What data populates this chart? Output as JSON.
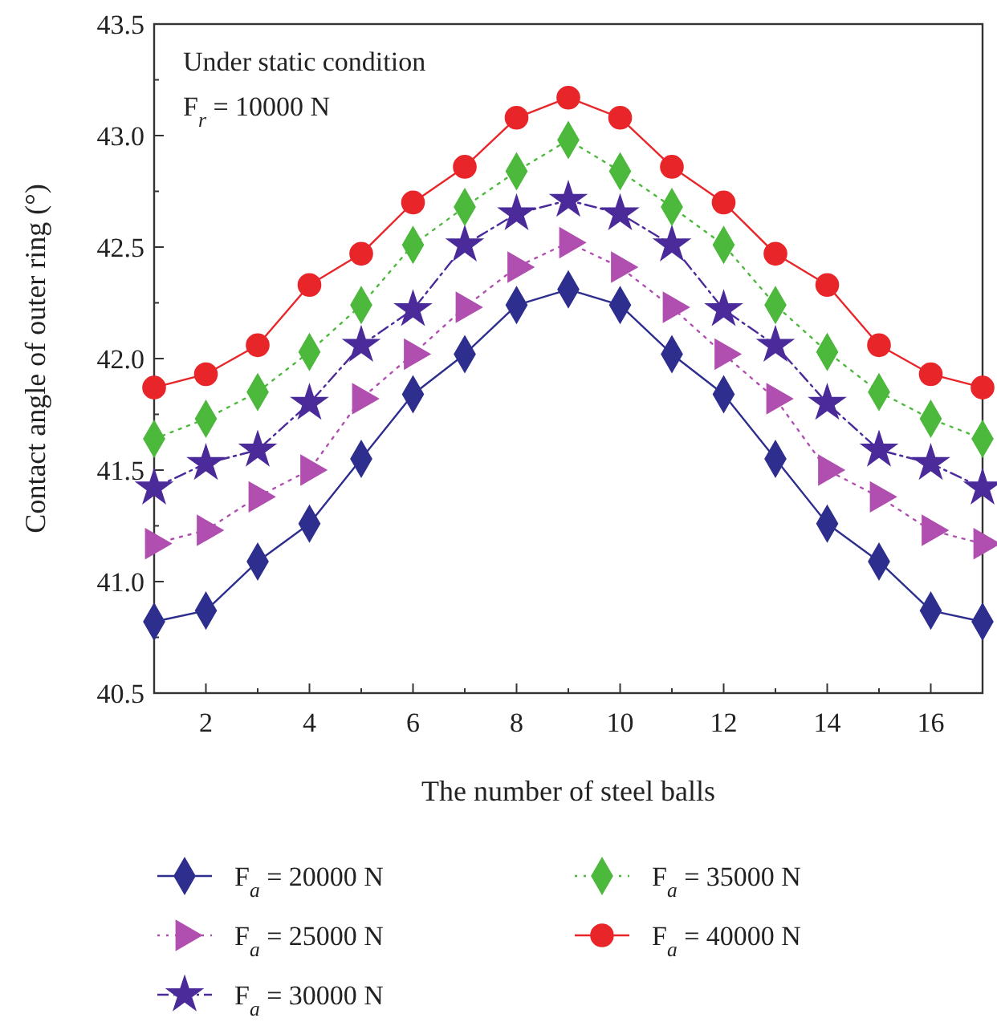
{
  "chart_data": {
    "type": "line",
    "xlabel": "The number of steel balls",
    "ylabel": "Contact angle of outer ring (°)",
    "annotations": [
      "Under static condition",
      "$_{}$F$_{r}$ = 10000 N"
    ],
    "x": [
      1,
      2,
      3,
      4,
      5,
      6,
      7,
      8,
      9,
      10,
      11,
      12,
      13,
      14,
      15,
      16,
      17
    ],
    "xlim": [
      1,
      17
    ],
    "xticks": [
      {
        "value": 1,
        "label": null
      },
      2,
      {
        "value": 3,
        "label": null
      },
      4,
      {
        "value": 5,
        "label": null
      },
      6,
      {
        "value": 7,
        "label": null
      },
      8,
      {
        "value": 9,
        "label": null
      },
      10,
      {
        "value": 11,
        "label": null
      },
      12,
      {
        "value": 13,
        "label": null
      },
      14,
      {
        "value": 15,
        "label": null
      },
      16,
      {
        "value": 17,
        "label": null
      }
    ],
    "ylim": [
      40.5,
      43.5
    ],
    "yticks": [
      {
        "value": 40.5,
        "label": "40.5"
      },
      {
        "value": 40.75,
        "label": null
      },
      {
        "value": 41,
        "label": "41.0"
      },
      {
        "value": 41.25,
        "label": null
      },
      {
        "value": 41.5,
        "label": "41.5"
      },
      {
        "value": 41.75,
        "label": null
      },
      {
        "value": 42,
        "label": "42.0"
      },
      {
        "value": 42.25,
        "label": null
      },
      {
        "value": 42.5,
        "label": "42.5"
      },
      {
        "value": 42.75,
        "label": null
      },
      {
        "value": 43,
        "label": "43.0"
      },
      {
        "value": 43.25,
        "label": null
      },
      {
        "value": 43.5,
        "label": "43.5"
      }
    ],
    "legend": "bottom",
    "series": [
      {
        "name": "F$_{a}$ = 20000 N",
        "color": "#2e2e8f",
        "marker": "diamond",
        "line_style": "solid",
        "values": [
          40.82,
          40.87,
          41.09,
          41.26,
          41.55,
          41.84,
          42.02,
          42.24,
          42.31,
          42.24,
          42.02,
          41.84,
          41.55,
          41.26,
          41.09,
          40.87,
          40.82
        ]
      },
      {
        "name": "F$_{a}$ = 25000 N",
        "color": "#b04fb0",
        "marker": "triangle",
        "line_style": "dotted",
        "values": [
          41.17,
          41.23,
          41.38,
          41.5,
          41.82,
          42.02,
          42.23,
          42.41,
          42.52,
          42.41,
          42.23,
          42.02,
          41.82,
          41.5,
          41.38,
          41.23,
          41.17
        ]
      },
      {
        "name": "F$_{a}$ = 30000 N",
        "color": "#4b2a9a",
        "marker": "star",
        "line_style": "dashed",
        "values": [
          41.42,
          41.53,
          41.59,
          41.8,
          42.06,
          42.22,
          42.51,
          42.65,
          42.71,
          42.65,
          42.51,
          42.22,
          42.06,
          41.8,
          41.59,
          41.53,
          41.42
        ]
      },
      {
        "name": "F$_{a}$ = 35000 N",
        "color": "#4cb83c",
        "marker": "diamond",
        "line_style": "dotted",
        "values": [
          41.64,
          41.73,
          41.85,
          42.03,
          42.24,
          42.51,
          42.68,
          42.84,
          42.98,
          42.84,
          42.68,
          42.51,
          42.24,
          42.03,
          41.85,
          41.73,
          41.64
        ]
      },
      {
        "name": "F$_{a}$ = 40000 N",
        "color": "#e8262a",
        "marker": "circle",
        "line_style": "solid",
        "values": [
          41.87,
          41.93,
          42.06,
          42.33,
          42.47,
          42.7,
          42.86,
          43.08,
          43.17,
          43.08,
          42.86,
          42.7,
          42.47,
          42.33,
          42.06,
          41.93,
          41.87
        ]
      }
    ]
  }
}
